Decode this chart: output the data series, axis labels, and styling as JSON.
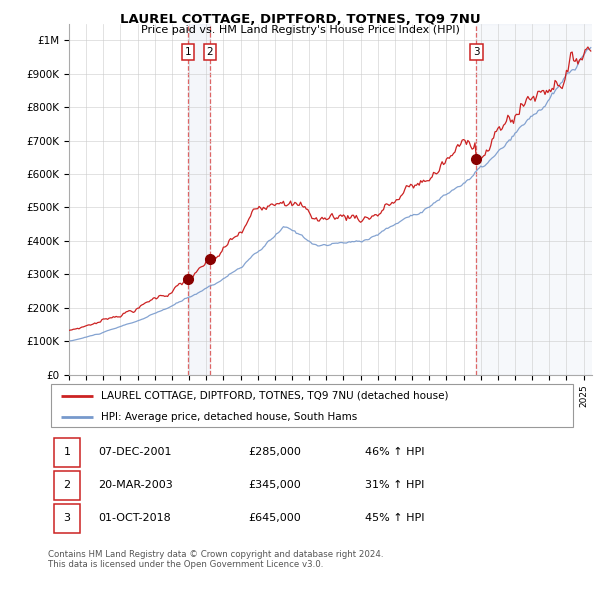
{
  "title": "LAUREL COTTAGE, DIPTFORD, TOTNES, TQ9 7NU",
  "subtitle": "Price paid vs. HM Land Registry's House Price Index (HPI)",
  "ylim": [
    0,
    1050000
  ],
  "yticks": [
    0,
    100000,
    200000,
    300000,
    400000,
    500000,
    600000,
    700000,
    800000,
    900000,
    1000000
  ],
  "ytick_labels": [
    "£0",
    "£100K",
    "£200K",
    "£300K",
    "£400K",
    "£500K",
    "£600K",
    "£700K",
    "£800K",
    "£900K",
    "£1M"
  ],
  "xstart": 1995.0,
  "xend": 2025.5,
  "sale_dates": [
    2001.93,
    2003.22,
    2018.75
  ],
  "sale_prices": [
    285000,
    345000,
    645000
  ],
  "sale_numbers": [
    "1",
    "2",
    "3"
  ],
  "red_line_color": "#cc2222",
  "blue_line_color": "#7799cc",
  "marker_color": "#880000",
  "vline_color": "#dd6666",
  "legend_label_red": "LAUREL COTTAGE, DIPTFORD, TOTNES, TQ9 7NU (detached house)",
  "legend_label_blue": "HPI: Average price, detached house, South Hams",
  "table_rows": [
    {
      "num": "1",
      "date": "07-DEC-2001",
      "price": "£285,000",
      "hpi": "46% ↑ HPI"
    },
    {
      "num": "2",
      "date": "20-MAR-2003",
      "price": "£345,000",
      "hpi": "31% ↑ HPI"
    },
    {
      "num": "3",
      "date": "01-OCT-2018",
      "price": "£645,000",
      "hpi": "45% ↑ HPI"
    }
  ],
  "footer": "Contains HM Land Registry data © Crown copyright and database right 2024.\nThis data is licensed under the Open Government Licence v3.0.",
  "background_color": "#ffffff",
  "grid_color": "#cccccc"
}
